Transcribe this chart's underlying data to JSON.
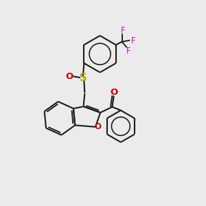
{
  "bg_color": "#ebebeb",
  "bond_color": "#1a1a1a",
  "S_color": "#aaaa00",
  "O_color": "#cc0000",
  "F_color": "#cc00cc",
  "ring_O_color": "#cc0000",
  "bond_lw": 1.5,
  "font_size": 8.5,
  "fig_w": 3.0,
  "fig_h": 3.0,
  "dpi": 100,
  "xlim": [
    0,
    10
  ],
  "ylim": [
    0,
    10
  ]
}
